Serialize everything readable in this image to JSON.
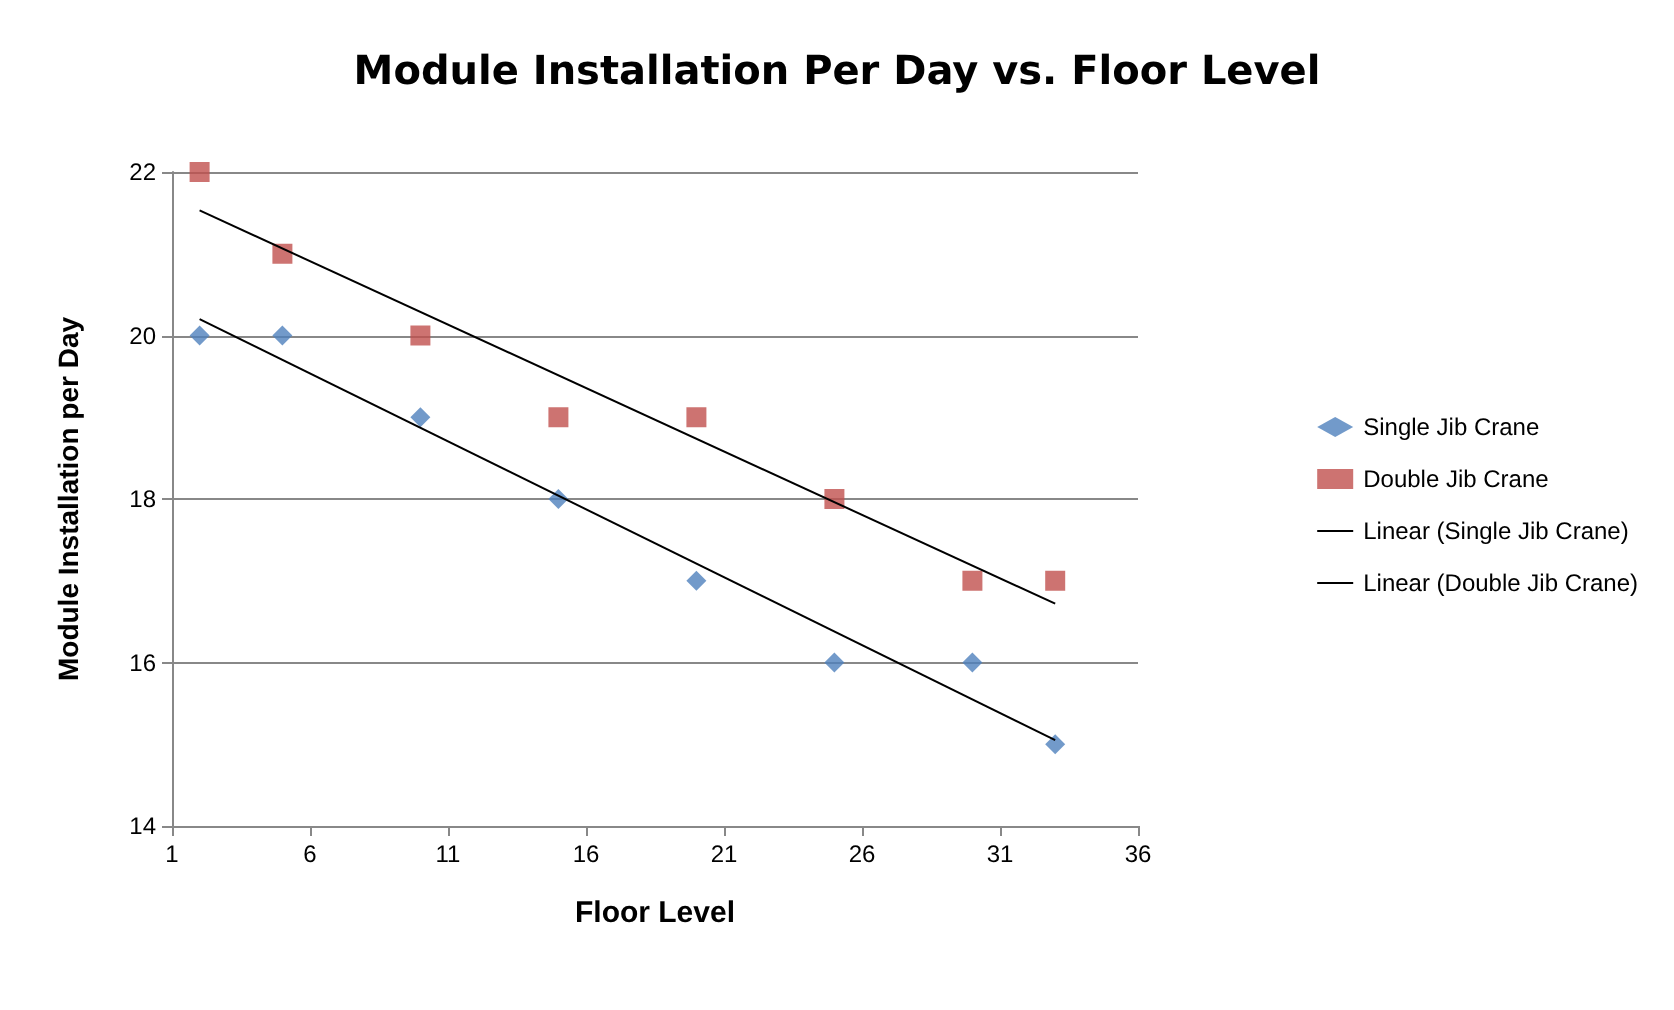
{
  "chart_data": {
    "type": "scatter",
    "title": "Module Installation Per Day vs. Floor Level",
    "xlabel": "Floor Level",
    "ylabel": "Module Installation per Day",
    "xlim": [
      1,
      36
    ],
    "xticks": [
      1,
      6,
      11,
      16,
      21,
      26,
      31,
      36
    ],
    "ylim": [
      14,
      22
    ],
    "yticks": [
      14,
      16,
      18,
      20,
      22
    ],
    "grid": "y",
    "legend": "right",
    "series": [
      {
        "name": "Single Jib Crane",
        "color": "#4f81bd",
        "marker": "diamond",
        "x": [
          2,
          5,
          10,
          15,
          20,
          25,
          30,
          33
        ],
        "values": [
          20,
          20,
          19,
          18,
          17,
          16,
          16,
          15
        ]
      },
      {
        "name": "Double Jib Crane",
        "color": "#c0504d",
        "marker": "square",
        "x": [
          2,
          5,
          10,
          15,
          20,
          25,
          30,
          33
        ],
        "values": [
          22,
          21,
          20,
          19,
          19,
          18,
          17,
          17
        ]
      },
      {
        "name": "Linear (Single Jib Crane)",
        "type": "line",
        "color": "#000000",
        "marker": "none",
        "x": [
          2,
          33
        ],
        "values": [
          20.2,
          15.05
        ]
      },
      {
        "name": "Linear (Double Jib Crane)",
        "type": "line",
        "color": "#000000",
        "marker": "none",
        "x": [
          2,
          33
        ],
        "values": [
          21.53,
          16.72
        ]
      }
    ]
  }
}
